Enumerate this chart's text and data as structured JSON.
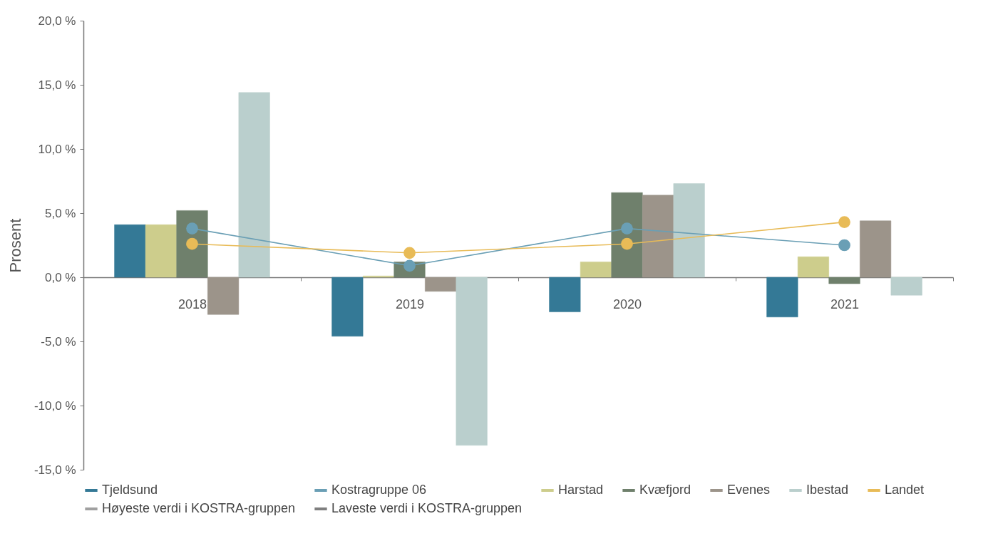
{
  "chart_data": {
    "type": "bar",
    "ylabel": "Prosent",
    "categories": [
      "2018",
      "2019",
      "2020",
      "2021"
    ],
    "series": [
      {
        "name": "Tjeldsund",
        "color": "#347996",
        "values": [
          4.1,
          -4.6,
          -2.7,
          -3.1
        ]
      },
      {
        "name": "Kostragruppe 06",
        "type": "line",
        "color": "#6a9fb5",
        "values": [
          3.8,
          0.9,
          3.8,
          2.5
        ]
      },
      {
        "name": "Harstad",
        "color": "#cdcd8c",
        "values": [
          4.1,
          0.1,
          1.2,
          1.6
        ]
      },
      {
        "name": "Kvæfjord",
        "color": "#6f806c",
        "values": [
          5.2,
          1.2,
          6.6,
          -0.5
        ]
      },
      {
        "name": "Evenes",
        "color": "#9c948a",
        "values": [
          -2.9,
          -1.1,
          6.4,
          4.4
        ]
      },
      {
        "name": "Ibestad",
        "color": "#bacfcd",
        "values": [
          14.4,
          -13.1,
          7.3,
          -1.4
        ]
      },
      {
        "name": "Landet",
        "type": "line",
        "color": "#e8bb57",
        "values": [
          2.6,
          1.9,
          2.6,
          4.3
        ]
      },
      {
        "name": "Høyeste verdi i KOSTRA-gruppen",
        "type": "line",
        "color": "#a0a0a0",
        "values": [
          null,
          null,
          null,
          null
        ]
      },
      {
        "name": "Laveste verdi i KOSTRA-gruppen",
        "type": "line",
        "color": "#7f7f7f",
        "values": [
          null,
          null,
          null,
          null
        ]
      }
    ],
    "ylim": [
      -15,
      20
    ],
    "yticks": [
      {
        "value": -15,
        "label": "-15,0 %"
      },
      {
        "value": -10,
        "label": "-10,0 %"
      },
      {
        "value": -5,
        "label": "-5,0 %"
      },
      {
        "value": 0,
        "label": "0,0 %"
      },
      {
        "value": 5,
        "label": "5,0 %"
      },
      {
        "value": 10,
        "label": "10,0 %"
      },
      {
        "value": 15,
        "label": "15,0 %"
      },
      {
        "value": 20,
        "label": "20,0 %"
      }
    ],
    "grid": false,
    "legend": "bottom",
    "marker": "circle",
    "line_style": "solid"
  }
}
